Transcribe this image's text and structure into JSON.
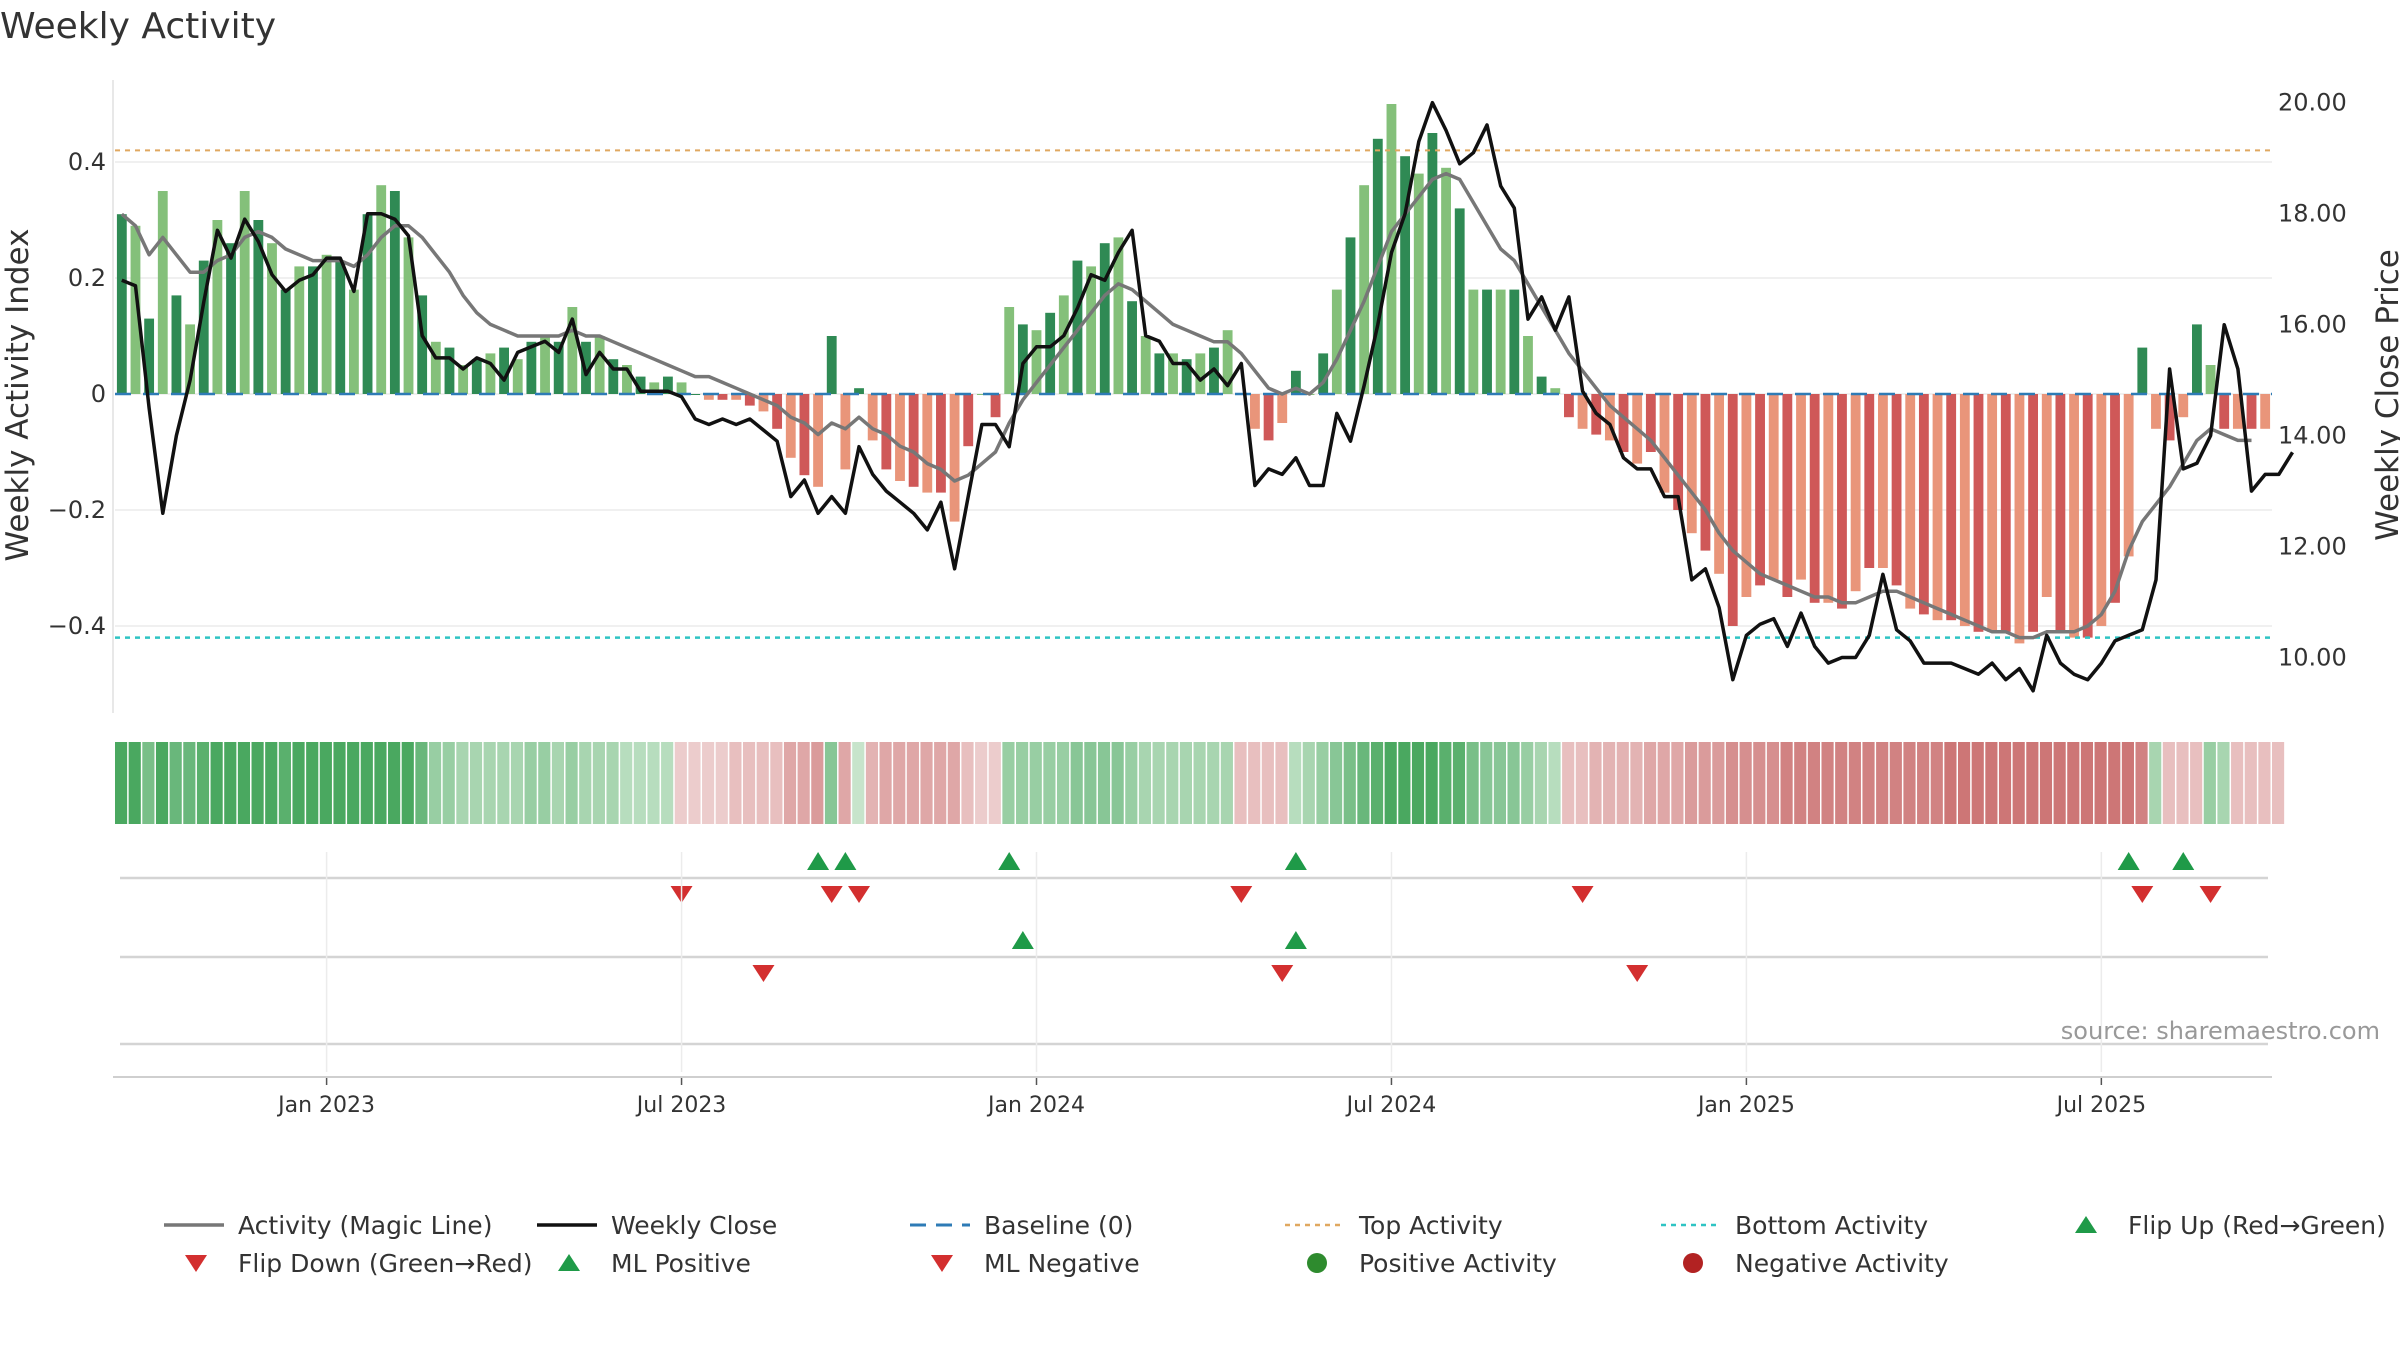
{
  "chart_data": {
    "type": "bar",
    "title": "Weekly Activity",
    "ylabel_left": "Weekly Activity Index",
    "ylabel_right": "Weekly Close Price",
    "source": "source: sharemaestro.com",
    "left_axis": {
      "ylim": [
        -0.55,
        0.55
      ],
      "ticks": [
        0.4,
        0.2,
        0,
        -0.2,
        -0.4
      ],
      "tick_labels": [
        "0.4",
        "0.2",
        "0",
        "−0.2",
        "−0.4"
      ]
    },
    "right_axis": {
      "ylim": [
        9.0,
        20.5
      ],
      "ticks": [
        20,
        18,
        16,
        14,
        12,
        10
      ],
      "tick_labels": [
        "20.00",
        "18.00",
        "16.00",
        "14.00",
        "12.00",
        "10.00"
      ]
    },
    "top_activity": 0.42,
    "bottom_activity": -0.42,
    "x_tick_labels": [
      "Jan 2023",
      "Jul 2023",
      "Jan 2024",
      "Jul 2024",
      "Jan 2025",
      "Jul 2025"
    ],
    "x_tick_weeks": [
      15,
      41,
      67,
      93,
      119,
      145
    ],
    "activity": [
      0.31,
      0.29,
      0.13,
      0.35,
      0.17,
      0.12,
      0.23,
      0.3,
      0.26,
      0.35,
      0.3,
      0.26,
      0.18,
      0.22,
      0.22,
      0.24,
      0.23,
      0.18,
      0.31,
      0.36,
      0.35,
      0.27,
      0.17,
      0.09,
      0.08,
      0.05,
      0.06,
      0.07,
      0.08,
      0.06,
      0.09,
      0.1,
      0.09,
      0.15,
      0.09,
      0.1,
      0.06,
      0.05,
      0.03,
      0.02,
      0.03,
      0.02,
      0.0,
      -0.01,
      -0.01,
      -0.01,
      -0.02,
      -0.03,
      -0.06,
      -0.11,
      -0.14,
      -0.16,
      0.1,
      -0.13,
      0.01,
      -0.08,
      -0.13,
      -0.15,
      -0.16,
      -0.17,
      -0.17,
      -0.22,
      -0.09,
      0.0,
      -0.04,
      0.15,
      0.12,
      0.11,
      0.14,
      0.17,
      0.23,
      0.22,
      0.26,
      0.27,
      0.16,
      0.1,
      0.07,
      0.07,
      0.06,
      0.07,
      0.08,
      0.11,
      0.0,
      -0.06,
      -0.08,
      -0.05,
      0.04,
      0.0,
      0.07,
      0.18,
      0.27,
      0.36,
      0.44,
      0.5,
      0.41,
      0.38,
      0.45,
      0.39,
      0.32,
      0.18,
      0.18,
      0.18,
      0.18,
      0.1,
      0.03,
      0.01,
      -0.04,
      -0.06,
      -0.07,
      -0.08,
      -0.1,
      -0.12,
      -0.1,
      -0.17,
      -0.2,
      -0.24,
      -0.27,
      -0.31,
      -0.4,
      -0.35,
      -0.33,
      -0.32,
      -0.35,
      -0.32,
      -0.36,
      -0.36,
      -0.37,
      -0.34,
      -0.3,
      -0.3,
      -0.33,
      -0.37,
      -0.38,
      -0.39,
      -0.39,
      -0.4,
      -0.41,
      -0.41,
      -0.41,
      -0.43,
      -0.41,
      -0.35,
      -0.41,
      -0.42,
      -0.42,
      -0.4,
      -0.36,
      -0.28,
      0.08,
      -0.06,
      -0.08,
      -0.04,
      0.12,
      0.05,
      -0.06,
      -0.06,
      -0.06,
      -0.06
    ],
    "magic_line": [
      0.31,
      0.29,
      0.24,
      0.27,
      0.24,
      0.21,
      0.21,
      0.23,
      0.24,
      0.27,
      0.28,
      0.27,
      0.25,
      0.24,
      0.23,
      0.23,
      0.23,
      0.22,
      0.24,
      0.27,
      0.29,
      0.29,
      0.27,
      0.24,
      0.21,
      0.17,
      0.14,
      0.12,
      0.11,
      0.1,
      0.1,
      0.1,
      0.1,
      0.11,
      0.1,
      0.1,
      0.09,
      0.08,
      0.07,
      0.06,
      0.05,
      0.04,
      0.03,
      0.03,
      0.02,
      0.01,
      0.0,
      -0.01,
      -0.02,
      -0.04,
      -0.05,
      -0.07,
      -0.05,
      -0.06,
      -0.04,
      -0.06,
      -0.07,
      -0.09,
      -0.1,
      -0.12,
      -0.13,
      -0.15,
      -0.14,
      -0.12,
      -0.1,
      -0.05,
      -0.01,
      0.02,
      0.05,
      0.08,
      0.11,
      0.14,
      0.17,
      0.19,
      0.18,
      0.16,
      0.14,
      0.12,
      0.11,
      0.1,
      0.09,
      0.09,
      0.07,
      0.04,
      0.01,
      0.0,
      0.01,
      0.0,
      0.02,
      0.06,
      0.11,
      0.16,
      0.22,
      0.28,
      0.31,
      0.34,
      0.37,
      0.38,
      0.37,
      0.33,
      0.29,
      0.25,
      0.23,
      0.19,
      0.15,
      0.11,
      0.07,
      0.04,
      0.01,
      -0.02,
      -0.04,
      -0.06,
      -0.08,
      -0.11,
      -0.14,
      -0.17,
      -0.2,
      -0.24,
      -0.27,
      -0.29,
      -0.31,
      -0.32,
      -0.33,
      -0.34,
      -0.35,
      -0.35,
      -0.36,
      -0.36,
      -0.35,
      -0.34,
      -0.34,
      -0.35,
      -0.36,
      -0.37,
      -0.38,
      -0.39,
      -0.4,
      -0.41,
      -0.41,
      -0.42,
      -0.42,
      -0.41,
      -0.41,
      -0.41,
      -0.4,
      -0.38,
      -0.34,
      -0.27,
      -0.22,
      -0.19,
      -0.16,
      -0.12,
      -0.08,
      -0.06,
      -0.07,
      -0.08,
      -0.08
    ],
    "weekly_close": [
      16.8,
      16.7,
      14.5,
      12.6,
      14.0,
      15.0,
      16.4,
      17.7,
      17.2,
      17.9,
      17.5,
      16.9,
      16.6,
      16.8,
      16.9,
      17.2,
      17.2,
      16.6,
      18.0,
      18.0,
      17.9,
      17.6,
      15.8,
      15.4,
      15.4,
      15.2,
      15.4,
      15.3,
      15.0,
      15.5,
      15.6,
      15.7,
      15.5,
      16.1,
      15.1,
      15.5,
      15.2,
      15.2,
      14.8,
      14.8,
      14.8,
      14.7,
      14.3,
      14.2,
      14.3,
      14.2,
      14.3,
      14.1,
      13.9,
      12.9,
      13.2,
      12.6,
      12.9,
      12.6,
      13.8,
      13.3,
      13.0,
      12.8,
      12.6,
      12.3,
      12.8,
      11.6,
      12.9,
      14.2,
      14.2,
      13.8,
      15.3,
      15.6,
      15.6,
      15.8,
      16.3,
      16.9,
      16.8,
      17.3,
      17.7,
      15.8,
      15.7,
      15.3,
      15.3,
      15.0,
      15.2,
      14.9,
      15.3,
      13.1,
      13.4,
      13.3,
      13.6,
      13.1,
      13.1,
      14.4,
      13.9,
      14.9,
      16.0,
      17.3,
      18.0,
      19.3,
      20.0,
      19.5,
      18.9,
      19.1,
      19.6,
      18.5,
      18.1,
      16.1,
      16.5,
      15.9,
      16.5,
      14.8,
      14.4,
      14.2,
      13.6,
      13.4,
      13.4,
      12.9,
      12.9,
      11.4,
      11.6,
      10.9,
      9.6,
      10.4,
      10.6,
      10.7,
      10.2,
      10.8,
      10.2,
      9.9,
      10.0,
      10.0,
      10.4,
      11.5,
      10.5,
      10.3,
      9.9,
      9.9,
      9.9,
      9.8,
      9.7,
      9.9,
      9.6,
      9.8,
      9.4,
      10.4,
      9.9,
      9.7,
      9.6,
      9.9,
      10.3,
      10.4,
      10.5,
      11.4,
      15.2,
      13.4,
      13.5,
      14.0,
      16.0,
      15.2,
      13.0,
      13.3,
      13.3,
      13.7
    ],
    "heat_strip": [
      1,
      1,
      0.7,
      1,
      0.8,
      0.8,
      0.9,
      1,
      1,
      1,
      1,
      1,
      0.9,
      1,
      1,
      1,
      1,
      1,
      1,
      1,
      1,
      1,
      0.8,
      0.5,
      0.5,
      0.4,
      0.4,
      0.4,
      0.4,
      0.4,
      0.5,
      0.5,
      0.4,
      0.5,
      0.4,
      0.4,
      0.4,
      0.3,
      0.3,
      0.3,
      0.3,
      -0.2,
      -0.2,
      -0.2,
      -0.2,
      -0.3,
      -0.3,
      -0.3,
      -0.3,
      -0.5,
      -0.5,
      -0.6,
      0.6,
      -0.5,
      0.2,
      -0.4,
      -0.5,
      -0.5,
      -0.5,
      -0.5,
      -0.5,
      -0.5,
      -0.3,
      -0.2,
      -0.2,
      0.5,
      0.5,
      0.5,
      0.5,
      0.5,
      0.6,
      0.6,
      0.6,
      0.6,
      0.5,
      0.4,
      0.4,
      0.4,
      0.4,
      0.4,
      0.4,
      0.4,
      -0.3,
      -0.3,
      -0.3,
      -0.3,
      0.3,
      0.4,
      0.5,
      0.6,
      0.7,
      0.8,
      0.9,
      1,
      1,
      1,
      1,
      0.9,
      0.9,
      0.7,
      0.6,
      0.6,
      0.6,
      0.5,
      0.4,
      0.3,
      -0.3,
      -0.3,
      -0.4,
      -0.4,
      -0.4,
      -0.4,
      -0.5,
      -0.5,
      -0.5,
      -0.6,
      -0.6,
      -0.6,
      -0.7,
      -0.7,
      -0.7,
      -0.7,
      -0.8,
      -0.8,
      -0.8,
      -0.8,
      -0.8,
      -0.8,
      -0.8,
      -0.8,
      -0.8,
      -0.8,
      -0.8,
      -0.8,
      -0.9,
      -0.9,
      -0.9,
      -0.9,
      -0.9,
      -0.9,
      -0.9,
      -0.9,
      -0.9,
      -0.9,
      -0.9,
      -0.9,
      -0.9,
      -0.9,
      -0.8,
      0.4,
      -0.3,
      -0.3,
      -0.3,
      0.5,
      0.4,
      -0.3,
      -0.3,
      -0.3,
      -0.3
    ],
    "flip_up_weeks": [
      51,
      53,
      65,
      86,
      147,
      151
    ],
    "flip_down_weeks": [
      41,
      52,
      54,
      82,
      107,
      148,
      153
    ],
    "ml_positive_weeks": [
      66,
      86
    ],
    "ml_negative_weeks": [
      47,
      85,
      111
    ],
    "legend": [
      {
        "label": "Activity (Magic Line)",
        "kind": "line",
        "color": "#777777"
      },
      {
        "label": "Weekly Close",
        "kind": "line",
        "color": "#111111"
      },
      {
        "label": "Baseline (0)",
        "kind": "dash",
        "color": "#2e7bb6"
      },
      {
        "label": "Top Activity",
        "kind": "dot",
        "color": "#e0a860"
      },
      {
        "label": "Bottom Activity",
        "kind": "dot",
        "color": "#2ec4c4"
      },
      {
        "label": "Flip Up (Red→Green)",
        "kind": "up",
        "color": "#1f9a48"
      },
      {
        "label": "Flip Down (Green→Red)",
        "kind": "down",
        "color": "#d32f2f"
      },
      {
        "label": "ML Positive",
        "kind": "up",
        "color": "#1f9a48"
      },
      {
        "label": "ML Negative",
        "kind": "down",
        "color": "#d32f2f"
      },
      {
        "label": "Positive Activity",
        "kind": "circle",
        "color": "#2e8b2e"
      },
      {
        "label": "Negative Activity",
        "kind": "circle",
        "color": "#b22222"
      }
    ],
    "colors": {
      "pos_dark": "#2f8a54",
      "pos_light": "#84c07a",
      "neg_dark": "#cf5858",
      "neg_light": "#e9957a",
      "line_magic": "#777777",
      "line_close": "#111111",
      "baseline": "#2e7bb6",
      "top": "#e0a860",
      "bottom": "#2ec4c4",
      "up": "#1f9a48",
      "down": "#d32f2f"
    }
  }
}
